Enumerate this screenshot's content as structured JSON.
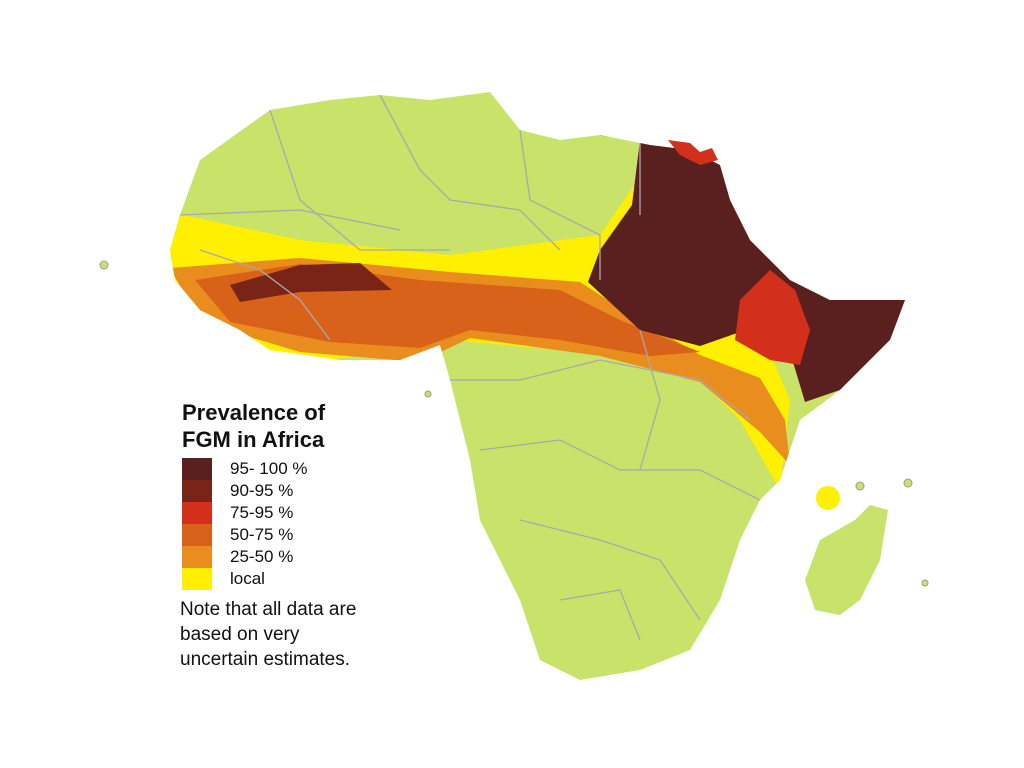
{
  "legend": {
    "title_lines": [
      "Prevalence of",
      "FGM in Africa"
    ],
    "items": [
      {
        "label": "95- 100 %",
        "color": "#5a1f1f"
      },
      {
        "label": "90-95 %",
        "color": "#7a2418"
      },
      {
        "label": "75-95 %",
        "color": "#d3301b"
      },
      {
        "label": "50-75 %",
        "color": "#d9621a"
      },
      {
        "label": "25-50 %",
        "color": "#e88d1e"
      },
      {
        "label": "local",
        "color": "#ffef00"
      }
    ],
    "note_lines": [
      "Note that all data are",
      "based on very",
      "uncertain estimates."
    ]
  }
}
